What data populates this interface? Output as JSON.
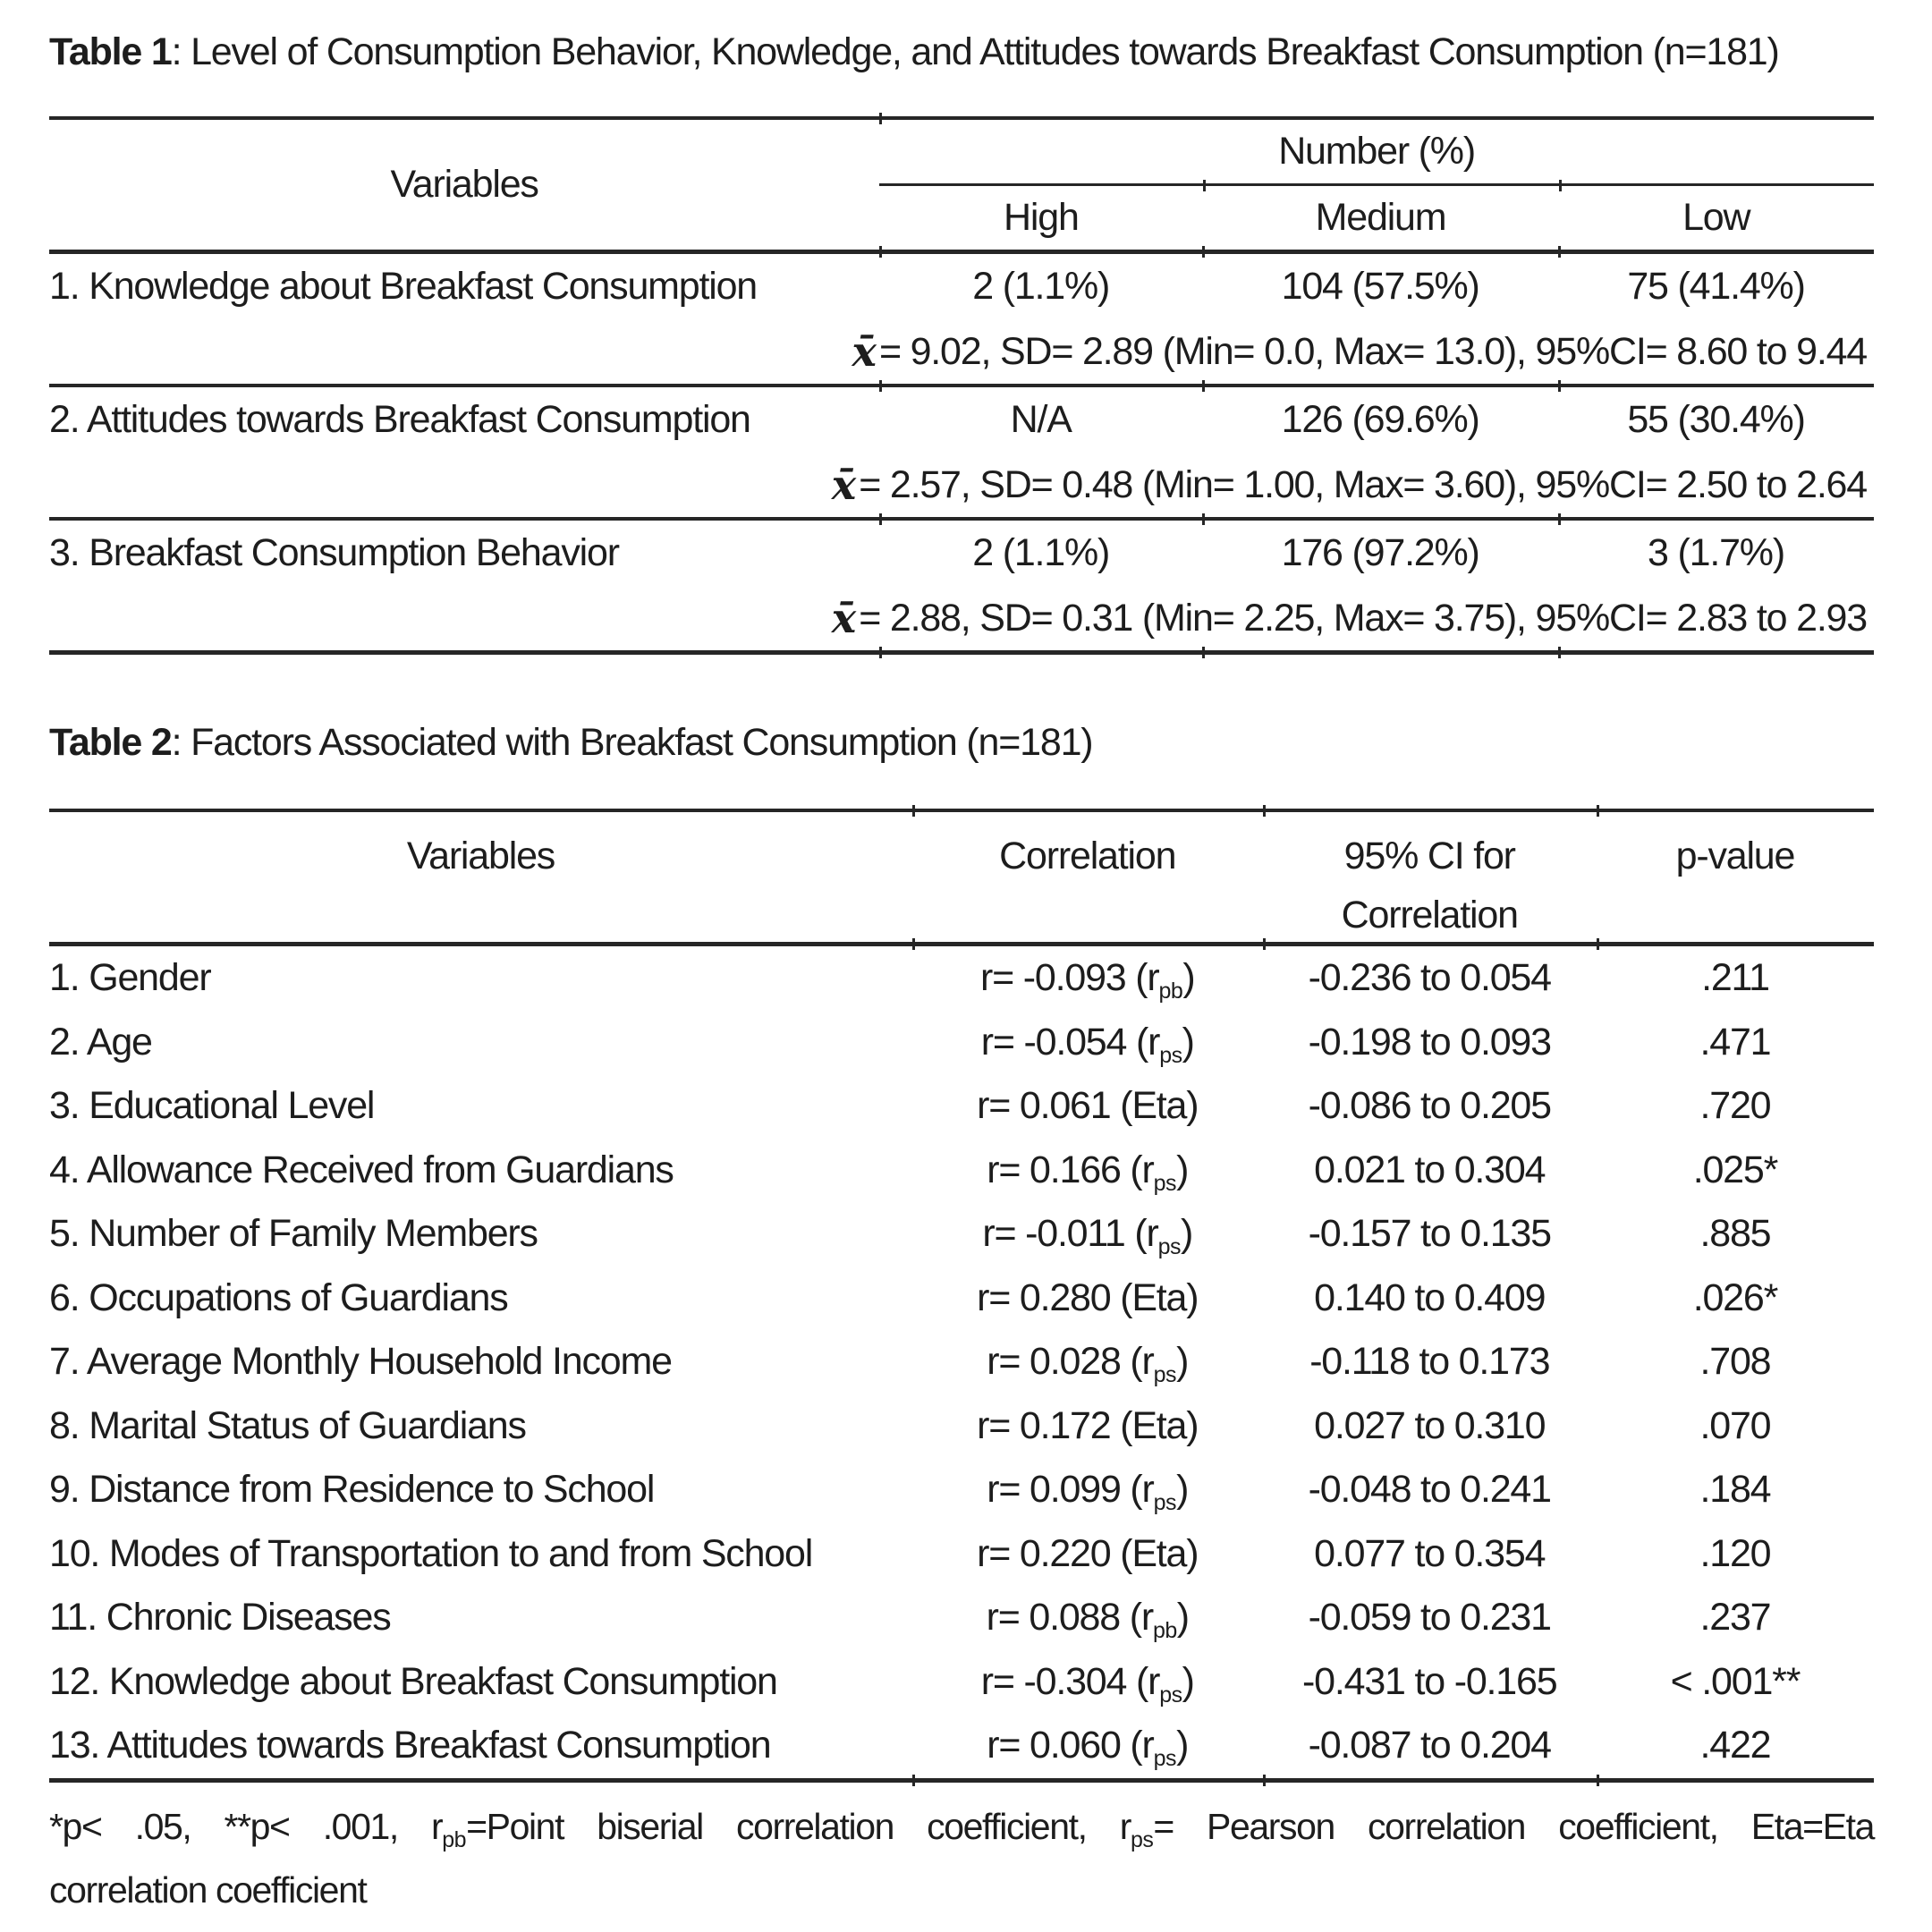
{
  "page": {
    "background": "#ffffff",
    "text_color": "#1d1d1d",
    "rule_color": "#262626"
  },
  "table1": {
    "title_bold": "Table 1",
    "title_rest": ": Level of Consumption Behavior, Knowledge, and Attitudes towards Breakfast Consumption (n=181)",
    "xbar": "x̄",
    "header": {
      "variables": "Variables",
      "number_group": "Number (%)",
      "levels": [
        "High",
        "Medium",
        "Low"
      ]
    },
    "rows": [
      {
        "label": "1. Knowledge about Breakfast Consumption",
        "high": "2 (1.1%)",
        "medium": "104 (57.5%)",
        "low": "75 (41.4%)",
        "stats": "= 9.02, SD= 2.89 (Min= 0.0, Max= 13.0), 95%CI= 8.60 to 9.44"
      },
      {
        "label": "2. Attitudes towards Breakfast Consumption",
        "high": "N/A",
        "medium": "126 (69.6%)",
        "low": "55 (30.4%)",
        "stats": "= 2.57, SD= 0.48 (Min= 1.00, Max= 3.60), 95%CI= 2.50 to 2.64"
      },
      {
        "label": "3. Breakfast Consumption Behavior",
        "high": "2 (1.1%)",
        "medium": "176 (97.2%)",
        "low": "3 (1.7%)",
        "stats": "= 2.88, SD= 0.31 (Min= 2.25, Max= 3.75), 95%CI= 2.83 to 2.93"
      }
    ]
  },
  "table2": {
    "title_bold": "Table 2",
    "title_rest": ": Factors Associated with Breakfast Consumption (n=181)",
    "header": {
      "variables": "Variables",
      "correlation": "Correlation",
      "ci_line1": "95% CI for",
      "ci_line2": "Correlation",
      "p_value": "p-value"
    },
    "rows": [
      {
        "label": "1. Gender",
        "r_prefix": "r= -0.093 (r",
        "r_sub": "pb",
        "r_suffix": ")",
        "ci": "-0.236 to 0.054",
        "p": ".211"
      },
      {
        "label": "2. Age",
        "r_prefix": "r= -0.054 (r",
        "r_sub": "ps",
        "r_suffix": ")",
        "ci": "-0.198 to 0.093",
        "p": ".471"
      },
      {
        "label": "3. Educational Level",
        "r_prefix": "r= 0.061 (Eta)",
        "r_sub": "",
        "r_suffix": "",
        "ci": "-0.086 to 0.205",
        "p": ".720"
      },
      {
        "label": "4. Allowance Received from Guardians",
        "r_prefix": "r= 0.166 (r",
        "r_sub": "ps",
        "r_suffix": ")",
        "ci": "0.021 to 0.304",
        "p": ".025*"
      },
      {
        "label": "5. Number of Family Members",
        "r_prefix": "r= -0.011 (r",
        "r_sub": "ps",
        "r_suffix": ")",
        "ci": "-0.157 to 0.135",
        "p": ".885"
      },
      {
        "label": "6. Occupations of Guardians",
        "r_prefix": "r= 0.280 (Eta)",
        "r_sub": "",
        "r_suffix": "",
        "ci": "0.140 to 0.409",
        "p": ".026*"
      },
      {
        "label": "7. Average Monthly Household Income",
        "r_prefix": "r= 0.028 (r",
        "r_sub": "ps",
        "r_suffix": ")",
        "ci": "-0.118 to 0.173",
        "p": ".708"
      },
      {
        "label": "8. Marital Status of Guardians",
        "r_prefix": "r= 0.172 (Eta)",
        "r_sub": "",
        "r_suffix": "",
        "ci": "0.027 to 0.310",
        "p": ".070"
      },
      {
        "label": "9. Distance from Residence to School",
        "r_prefix": "r= 0.099 (r",
        "r_sub": "ps",
        "r_suffix": ")",
        "ci": "-0.048 to 0.241",
        "p": ".184"
      },
      {
        "label": "10. Modes of Transportation to and from School",
        "r_prefix": "r= 0.220 (Eta)",
        "r_sub": "",
        "r_suffix": "",
        "ci": "0.077 to 0.354",
        "p": ".120"
      },
      {
        "label": "11. Chronic Diseases",
        "r_prefix": "r= 0.088 (r",
        "r_sub": "pb",
        "r_suffix": ")",
        "ci": "-0.059 to 0.231",
        "p": ".237"
      },
      {
        "label": "12. Knowledge about Breakfast Consumption",
        "r_prefix": "r= -0.304 (r",
        "r_sub": "ps",
        "r_suffix": ")",
        "ci": "-0.431 to -0.165",
        "p": "< .001**"
      },
      {
        "label": "13. Attitudes towards Breakfast Consumption",
        "r_prefix": "r= 0.060 (r",
        "r_sub": "ps",
        "r_suffix": ")",
        "ci": "-0.087 to 0.204",
        "p": ".422"
      }
    ]
  },
  "footnote": {
    "line1_segments": [
      {
        "t": "*p< .05, **p< .001, r"
      },
      {
        "s": "pb"
      },
      {
        "t": "=Point biserial correlation coefficient, r"
      },
      {
        "s": "ps"
      },
      {
        "t": "= Pearson correlation coefficient, Eta=Eta"
      }
    ],
    "line2": "correlation coefficient"
  }
}
